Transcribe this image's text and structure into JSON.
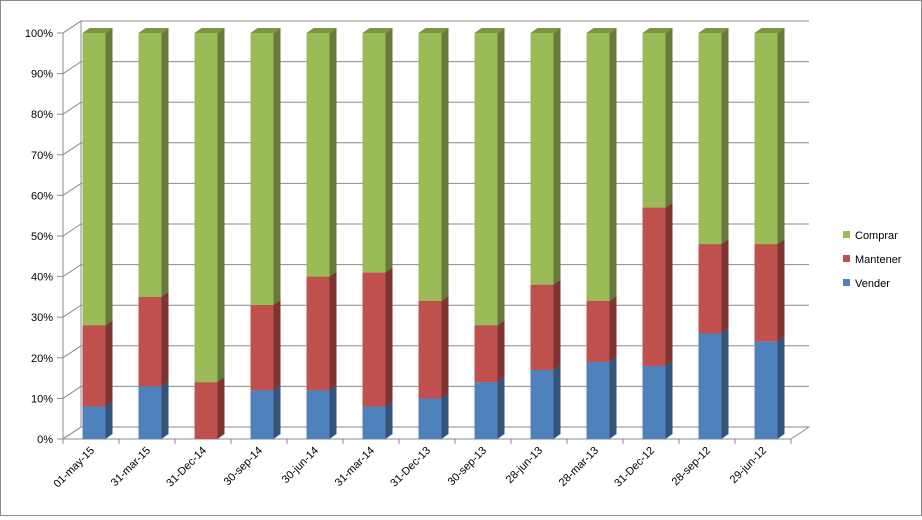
{
  "chart_data": {
    "type": "bar",
    "stacked": true,
    "percent_stacked": true,
    "three_d": true,
    "categories": [
      "01-may-15",
      "31-mar-15",
      "31-Dec-14",
      "30-sep-14",
      "30-jun-14",
      "31-mar-14",
      "31-Dec-13",
      "30-sep-13",
      "28-jun-13",
      "28-mar-13",
      "31-Dec-12",
      "28-sep-12",
      "29-jun-12"
    ],
    "series": [
      {
        "name": "Vender",
        "color": "#4f81bd",
        "values": [
          8,
          13,
          0,
          12,
          12,
          8,
          10,
          14,
          17,
          19,
          18,
          26,
          24
        ]
      },
      {
        "name": "Mantener",
        "color": "#c0504d",
        "values": [
          20,
          22,
          14,
          21,
          28,
          33,
          24,
          14,
          21,
          15,
          39,
          22,
          24
        ]
      },
      {
        "name": "Comprar",
        "color": "#9bbb59",
        "values": [
          72,
          65,
          86,
          67,
          60,
          59,
          66,
          72,
          62,
          66,
          43,
          52,
          52
        ]
      }
    ],
    "y_ticks": [
      "0%",
      "10%",
      "20%",
      "30%",
      "40%",
      "50%",
      "60%",
      "70%",
      "80%",
      "90%",
      "100%"
    ],
    "ylim": [
      0,
      100
    ],
    "grid": true,
    "legend_position": "right",
    "legend_order": [
      "Comprar",
      "Mantener",
      "Vender"
    ]
  }
}
